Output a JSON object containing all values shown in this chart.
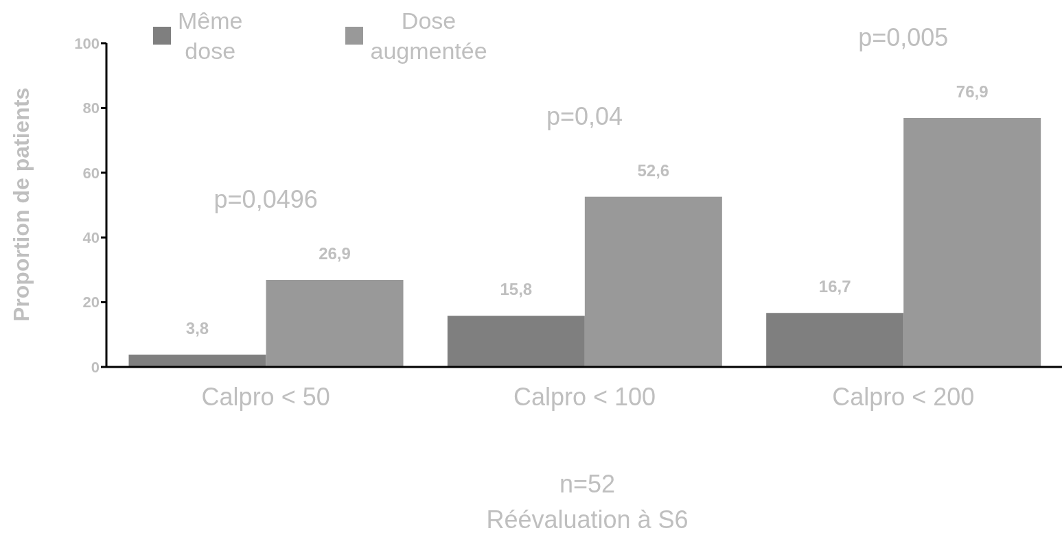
{
  "chart_data": {
    "type": "bar",
    "ylabel": "Proportion de patients",
    "xlabel": "n=52\nRéévaluation à S6",
    "categories": [
      "Calpro < 50",
      "Calpro < 100",
      "Calpro < 200"
    ],
    "series": [
      {
        "name": "Même dose",
        "color": "#7f7f7f",
        "values": [
          3.8,
          15.8,
          16.7
        ],
        "value_labels": [
          "3,8",
          "15,8",
          "16,7"
        ]
      },
      {
        "name": "Dose augmentée",
        "color": "#999999",
        "values": [
          26.9,
          52.6,
          76.9
        ],
        "value_labels": [
          "26,9",
          "52,6",
          "76,9"
        ]
      }
    ],
    "ylim": [
      0,
      100
    ],
    "yticks": [
      0,
      20,
      40,
      60,
      80,
      100
    ],
    "grid": false,
    "legend": "top left",
    "annotations": [
      "p=0,0496",
      "p=0,04",
      "p=0,005"
    ]
  }
}
